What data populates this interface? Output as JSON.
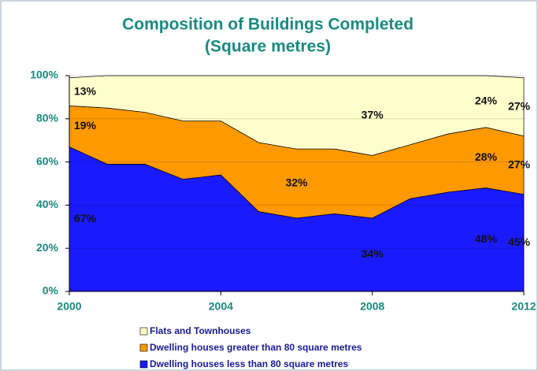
{
  "chart_data": {
    "type": "stacked_area",
    "title": "Composition of Buildings Completed",
    "subtitle": "(Square metres)",
    "x": [
      2000,
      2001,
      2002,
      2003,
      2004,
      2005,
      2006,
      2007,
      2008,
      2009,
      2010,
      2011,
      2012
    ],
    "xlim": [
      2000,
      2012
    ],
    "xticks": [
      2000,
      2004,
      2008,
      2012
    ],
    "ylim": [
      0,
      100
    ],
    "yticks": [
      {
        "value": 0,
        "label": "0%"
      },
      {
        "value": 20,
        "label": "20%"
      },
      {
        "value": 40,
        "label": "40%"
      },
      {
        "value": 60,
        "label": "60%"
      },
      {
        "value": 80,
        "label": "80%"
      },
      {
        "value": 100,
        "label": "100%"
      }
    ],
    "grid": true,
    "series": [
      {
        "name": "Dwelling houses less than 80 square metres",
        "color": "#1a1aff",
        "values": [
          67,
          59,
          59,
          52,
          54,
          37,
          34,
          36,
          34,
          43,
          46,
          48,
          45
        ],
        "value_labels": [
          "67%",
          null,
          null,
          null,
          null,
          null,
          null,
          null,
          "34%",
          null,
          null,
          "48%",
          "45%"
        ]
      },
      {
        "name": "Dwelling houses greater than 80 square metres",
        "color": "#ff9900",
        "values": [
          19,
          26,
          24,
          27,
          25,
          32,
          32,
          30,
          29,
          25,
          27,
          28,
          27
        ],
        "value_labels": [
          "19%",
          null,
          null,
          null,
          null,
          null,
          "32%",
          null,
          null,
          null,
          null,
          "28%",
          "27%"
        ]
      },
      {
        "name": "Flats and Townhouses",
        "color": "#ffffcc",
        "values": [
          13,
          15,
          17,
          21,
          21,
          31,
          34,
          34,
          37,
          32,
          27,
          24,
          27
        ],
        "value_labels": [
          "13%",
          null,
          null,
          null,
          null,
          null,
          null,
          null,
          "37%",
          null,
          null,
          "24%",
          "27%"
        ]
      }
    ]
  }
}
